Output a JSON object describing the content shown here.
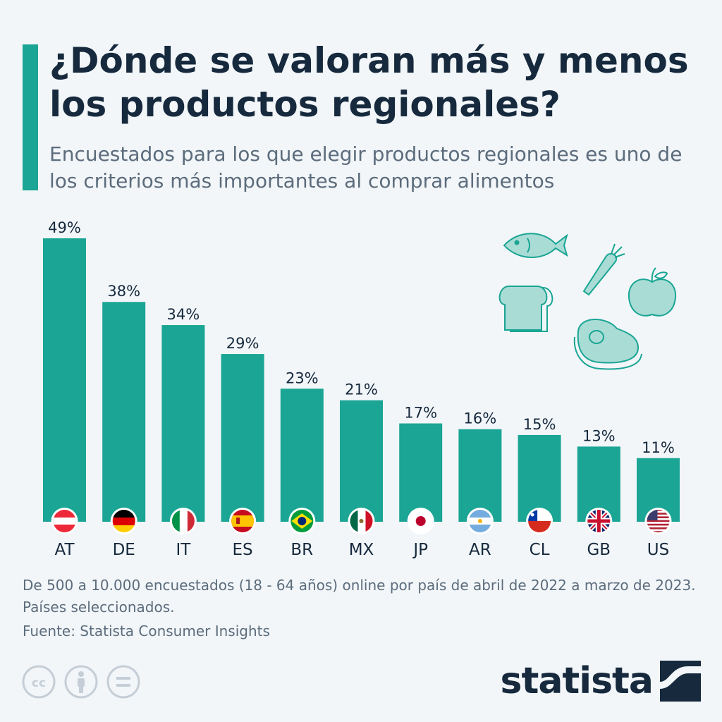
{
  "header": {
    "title": "¿Dónde se valoran más y menos los productos regionales?",
    "subtitle": "Encuestados para los que elegir productos regionales es uno de los criterios más importantes al comprar alimentos"
  },
  "chart_data": {
    "type": "bar",
    "categories": [
      "AT",
      "DE",
      "IT",
      "ES",
      "BR",
      "MX",
      "JP",
      "AR",
      "CL",
      "GB",
      "US"
    ],
    "values": [
      49,
      38,
      34,
      29,
      23,
      21,
      17,
      16,
      15,
      13,
      11
    ],
    "value_labels": [
      "49%",
      "38%",
      "34%",
      "29%",
      "23%",
      "21%",
      "17%",
      "16%",
      "15%",
      "13%",
      "11%"
    ],
    "value_unit": "%",
    "ylim": [
      0,
      49
    ],
    "bar_color": "#1aa594",
    "grid": false,
    "flags": [
      "austria-flag",
      "germany-flag",
      "italy-flag",
      "spain-flag",
      "brazil-flag",
      "mexico-flag",
      "japan-flag",
      "argentina-flag",
      "chile-flag",
      "uk-flag",
      "usa-flag"
    ]
  },
  "decoration": {
    "icons": [
      "fish-icon",
      "carrot-icon",
      "bread-icon",
      "apple-icon",
      "meat-icon"
    ],
    "icon_color": "#1aa594"
  },
  "footer": {
    "note": "De 500 a 10.000 encuestados (18 - 64 años) online por país de abril de 2022 a marzo de 2023. Países seleccionados.",
    "source": "Fuente: Statista Consumer Insights",
    "license_icons": [
      "cc-icon",
      "attribution-icon",
      "no-derivatives-icon"
    ],
    "logo_text": "statista",
    "brand_color": "#16293d"
  }
}
